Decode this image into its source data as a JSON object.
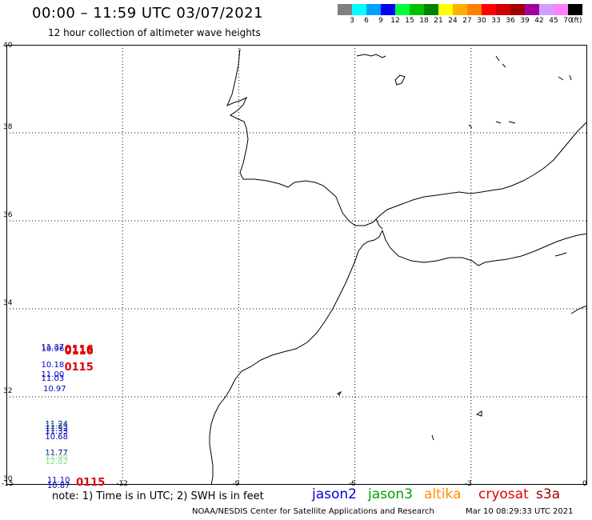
{
  "title": "00:00 – 11:59 UTC 03/07/2021",
  "subtitle": "12 hour collection of altimeter wave heights",
  "scale": {
    "colors": [
      "#808080",
      "#00ffff",
      "#00a0ff",
      "#0000ff",
      "#00ff40",
      "#00c000",
      "#008000",
      "#ffff00",
      "#ffb000",
      "#ff8000",
      "#ff0000",
      "#d00000",
      "#a00000",
      "#a000a0",
      "#d0a0ff",
      "#ff80ff",
      "#000000"
    ],
    "labels": [
      "3",
      "6",
      "9",
      "12",
      "15",
      "18",
      "21",
      "24",
      "27",
      "30",
      "33",
      "36",
      "39",
      "42",
      "45",
      "70"
    ],
    "unit": "(ft)"
  },
  "axes": {
    "lat_labels": [
      "40",
      "38",
      "36",
      "34",
      "32",
      "30"
    ],
    "lon_labels": [
      "-15",
      "-12",
      "-9",
      "-6",
      "-3",
      "0"
    ]
  },
  "labels": [
    {
      "text": "11.37",
      "color": "#0000c0",
      "lon": -14.1,
      "lat": 33.1
    },
    {
      "text": "10.96",
      "color": "#0000c0",
      "lon": -14.1,
      "lat": 33.05
    },
    {
      "text": "0116",
      "color": "#e00000",
      "lon": -13.5,
      "lat": 33.1,
      "cycle": true
    },
    {
      "text": "0116",
      "color": "#e00000",
      "lon": -13.5,
      "lat": 33.05,
      "cycle": true
    },
    {
      "text": "10.18",
      "color": "#0000c0",
      "lon": -14.1,
      "lat": 32.7
    },
    {
      "text": "0115",
      "color": "#e00000",
      "lon": -13.5,
      "lat": 32.7,
      "cycle": true
    },
    {
      "text": "11.00",
      "color": "#0000c0",
      "lon": -14.1,
      "lat": 32.48
    },
    {
      "text": "11.03",
      "color": "#0000c0",
      "lon": -14.1,
      "lat": 32.38
    },
    {
      "text": "10.97",
      "color": "#0000c0",
      "lon": -14.05,
      "lat": 32.15
    },
    {
      "text": "11.24",
      "color": "#0000c0",
      "lon": -14.0,
      "lat": 31.35
    },
    {
      "text": "11.33",
      "color": "#00a000",
      "lon": -14.0,
      "lat": 31.3
    },
    {
      "text": "11.52",
      "color": "#0000c0",
      "lon": -14.0,
      "lat": 31.23
    },
    {
      "text": "11.33",
      "color": "#0000c0",
      "lon": -14.0,
      "lat": 31.18
    },
    {
      "text": "10.68",
      "color": "#0000c0",
      "lon": -14.0,
      "lat": 31.05
    },
    {
      "text": "11.77",
      "color": "#0000c0",
      "lon": -14.0,
      "lat": 30.7
    },
    {
      "text": "12.40",
      "color": "#80e080",
      "lon": -14.0,
      "lat": 30.6
    },
    {
      "text": "12.82",
      "color": "#80e080",
      "lon": -14.0,
      "lat": 30.5
    },
    {
      "text": "11.10",
      "color": "#0000c0",
      "lon": -13.95,
      "lat": 30.08
    },
    {
      "text": "0115",
      "color": "#e00000",
      "lon": -13.2,
      "lat": 30.08,
      "cycle": true
    },
    {
      "text": "10.87",
      "color": "#0000c0",
      "lon": -13.95,
      "lat": 29.95
    }
  ],
  "note": "note: 1) Time is in UTC; 2) SWH is in feet",
  "satellites": [
    {
      "name": "jason2",
      "color": "#0000d0"
    },
    {
      "name": "jason3",
      "color": "#00a000"
    },
    {
      "name": "altika",
      "color": "#ff9000"
    },
    {
      "name": "cryosat",
      "color": "#e00000"
    },
    {
      "name": "s3a",
      "color": "#a00000"
    }
  ],
  "credit": "NOAA/NESDIS Center for Satellite Applications and Research",
  "timestamp": "Mar 10 08:29:33 UTC 2021"
}
